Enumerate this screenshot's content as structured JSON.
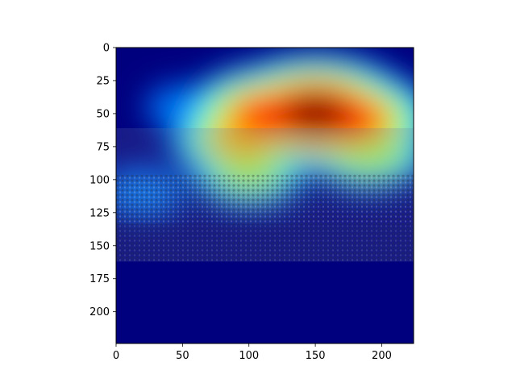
{
  "chart_data": {
    "type": "heatmap",
    "title": "",
    "xlabel": "",
    "ylabel": "",
    "xlim": [
      0,
      224
    ],
    "ylim": [
      224,
      0
    ],
    "x_ticks": [
      0,
      50,
      100,
      150,
      200
    ],
    "y_ticks": [
      0,
      25,
      50,
      75,
      100,
      125,
      150,
      175,
      200
    ],
    "colormap": "jet",
    "background_image": "crowded indoor hall photo overlaid with attention heatmap",
    "photo_extent_y": [
      61,
      162
    ],
    "hotspots": [
      {
        "x": 150,
        "y": 50,
        "intensity": 1.0
      },
      {
        "x": 115,
        "y": 52,
        "intensity": 0.85
      },
      {
        "x": 175,
        "y": 55,
        "intensity": 0.85
      },
      {
        "x": 95,
        "y": 70,
        "intensity": 0.7
      },
      {
        "x": 190,
        "y": 80,
        "intensity": 0.6
      },
      {
        "x": 100,
        "y": 95,
        "intensity": 0.55
      },
      {
        "x": 20,
        "y": 110,
        "intensity": 0.35
      },
      {
        "x": 50,
        "y": 45,
        "intensity": 0.3
      }
    ]
  },
  "colors": {
    "low": "#00007f",
    "mid_low": "#0040ff",
    "mid": "#3fffb7",
    "mid_high": "#ffd800",
    "high": "#7f0000"
  }
}
